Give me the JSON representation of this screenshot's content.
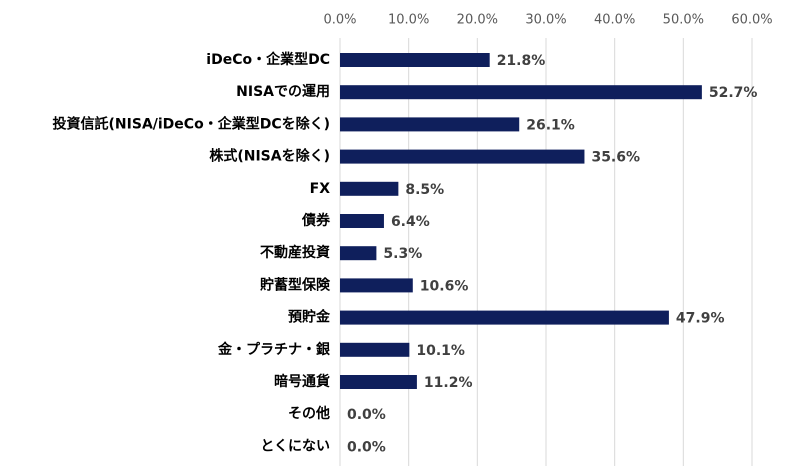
{
  "chart_data": {
    "type": "bar",
    "orientation": "horizontal",
    "categories": [
      "iDeCo・企業型DC",
      "NISAでの運用",
      "投資信託(NISA/iDeCo・企業型DCを除く)",
      "株式(NISAを除く)",
      "FX",
      "債券",
      "不動産投資",
      "貯蓄型保険",
      "預貯金",
      "金・プラチナ・銀",
      "暗号通貨",
      "その他",
      "とくにない"
    ],
    "values": [
      21.8,
      52.7,
      26.1,
      35.6,
      8.5,
      6.4,
      5.3,
      10.6,
      47.9,
      10.1,
      11.2,
      0.0,
      0.0
    ],
    "value_labels": [
      "21.8%",
      "52.7%",
      "26.1%",
      "35.6%",
      "8.5%",
      "6.4%",
      "5.3%",
      "10.6%",
      "47.9%",
      "10.1%",
      "11.2%",
      "0.0%",
      "0.0%"
    ],
    "color": "#0f1f5c",
    "xlim": [
      0,
      60
    ],
    "xticks": [
      {
        "value": 0,
        "label": "0.0%"
      },
      {
        "value": 10,
        "label": "10.0%"
      },
      {
        "value": 20,
        "label": "20.0%"
      },
      {
        "value": 30,
        "label": "30.0%"
      },
      {
        "value": 40,
        "label": "40.0%"
      },
      {
        "value": 50,
        "label": "50.0%"
      },
      {
        "value": 60,
        "label": "60.0%"
      }
    ],
    "grid": true
  }
}
